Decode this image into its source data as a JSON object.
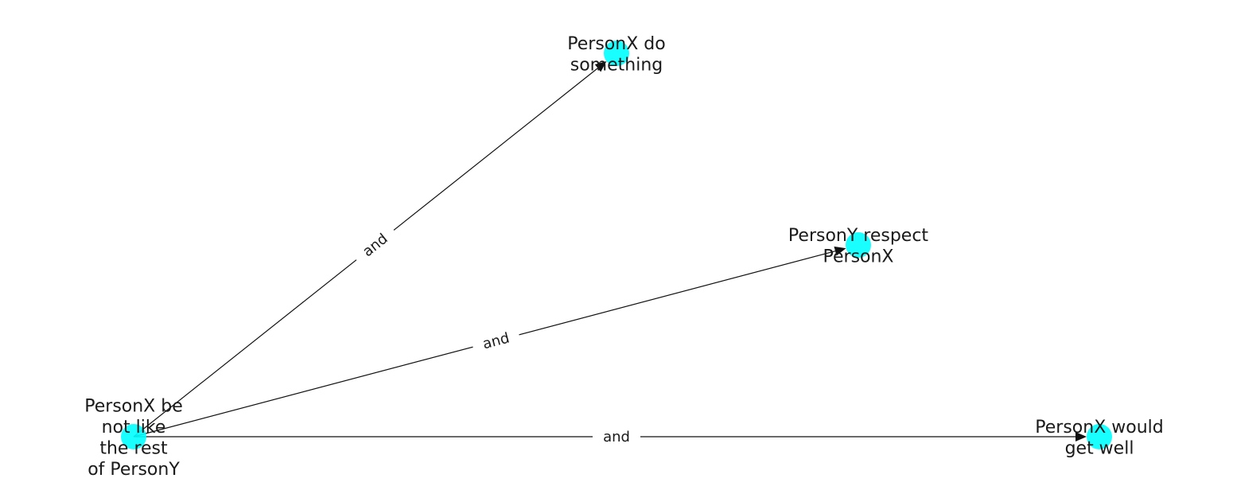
{
  "diagram": {
    "node_color": "#00ffff",
    "edge_color": "#111111",
    "nodes": [
      {
        "id": "n0",
        "label_lines": [
          "PersonX be",
          "not like",
          "the rest",
          "of PersonY"
        ]
      },
      {
        "id": "n1",
        "label_lines": [
          "PersonX do",
          "something"
        ]
      },
      {
        "id": "n2",
        "label_lines": [
          "PersonY respect",
          "PersonX"
        ]
      },
      {
        "id": "n3",
        "label_lines": [
          "PersonX would",
          "get well"
        ]
      }
    ],
    "edges": [
      {
        "from": "n0",
        "to": "n1",
        "label": "and"
      },
      {
        "from": "n0",
        "to": "n2",
        "label": "and"
      },
      {
        "from": "n0",
        "to": "n3",
        "label": "and"
      }
    ]
  }
}
